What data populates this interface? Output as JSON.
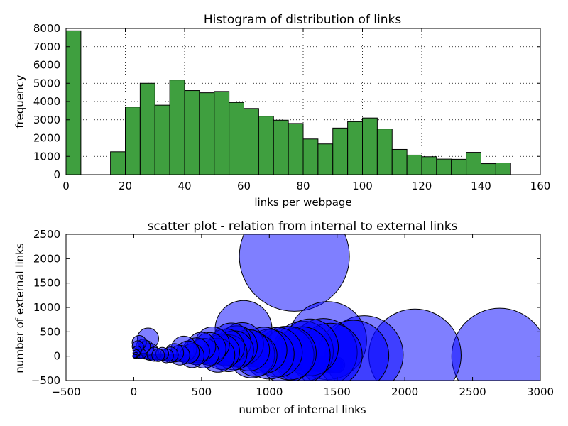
{
  "chart_data": [
    {
      "type": "bar",
      "title": "Histogram of distribution of links",
      "xlabel": "links per webpage",
      "ylabel": "frequency",
      "xlim": [
        0,
        160
      ],
      "ylim": [
        0,
        8000
      ],
      "xticks": [
        "0",
        "20",
        "40",
        "60",
        "80",
        "100",
        "120",
        "140",
        "160"
      ],
      "yticks": [
        "0",
        "1000",
        "2000",
        "3000",
        "4000",
        "5000",
        "6000",
        "7000",
        "8000"
      ],
      "grid": true,
      "bar_color": "#3f9f3f",
      "bins": [
        {
          "x0": 0,
          "x1": 5,
          "value": 7870
        },
        {
          "x0": 15,
          "x1": 20,
          "value": 1250
        },
        {
          "x0": 20,
          "x1": 25,
          "value": 3700
        },
        {
          "x0": 25,
          "x1": 30,
          "value": 5000
        },
        {
          "x0": 30,
          "x1": 35,
          "value": 3800
        },
        {
          "x0": 35,
          "x1": 40,
          "value": 5180
        },
        {
          "x0": 40,
          "x1": 45,
          "value": 4600
        },
        {
          "x0": 45,
          "x1": 50,
          "value": 4480
        },
        {
          "x0": 50,
          "x1": 55,
          "value": 4550
        },
        {
          "x0": 55,
          "x1": 60,
          "value": 3950
        },
        {
          "x0": 60,
          "x1": 65,
          "value": 3620
        },
        {
          "x0": 65,
          "x1": 70,
          "value": 3200
        },
        {
          "x0": 70,
          "x1": 75,
          "value": 2980
        },
        {
          "x0": 75,
          "x1": 80,
          "value": 2800
        },
        {
          "x0": 80,
          "x1": 85,
          "value": 1950
        },
        {
          "x0": 85,
          "x1": 90,
          "value": 1680
        },
        {
          "x0": 90,
          "x1": 95,
          "value": 2550
        },
        {
          "x0": 95,
          "x1": 100,
          "value": 2900
        },
        {
          "x0": 100,
          "x1": 105,
          "value": 3100
        },
        {
          "x0": 105,
          "x1": 110,
          "value": 2500
        },
        {
          "x0": 110,
          "x1": 115,
          "value": 1380
        },
        {
          "x0": 115,
          "x1": 120,
          "value": 1070
        },
        {
          "x0": 120,
          "x1": 125,
          "value": 980
        },
        {
          "x0": 125,
          "x1": 130,
          "value": 850
        },
        {
          "x0": 130,
          "x1": 135,
          "value": 840
        },
        {
          "x0": 135,
          "x1": 140,
          "value": 1220
        },
        {
          "x0": 140,
          "x1": 145,
          "value": 600
        },
        {
          "x0": 145,
          "x1": 150,
          "value": 640
        }
      ]
    },
    {
      "type": "scatter",
      "title": "scatter plot - relation from internal to external links",
      "xlabel": "number of internal links",
      "ylabel": "number of external links",
      "xlim": [
        -500,
        3000
      ],
      "ylim": [
        -500,
        2500
      ],
      "xticks": [
        "−500",
        "0",
        "500",
        "1000",
        "1500",
        "2000",
        "2500",
        "3000"
      ],
      "yticks": [
        "−500",
        "0",
        "500",
        "1000",
        "1500",
        "2000",
        "2500"
      ],
      "grid": false,
      "point_color": "#0000ff",
      "point_alpha": 0.5,
      "points": [
        {
          "x": 1185,
          "y": 2050,
          "size": 155
        },
        {
          "x": 2700,
          "y": 0,
          "size": 135
        },
        {
          "x": 2075,
          "y": 20,
          "size": 130
        },
        {
          "x": 1700,
          "y": 30,
          "size": 110
        },
        {
          "x": 1620,
          "y": 10,
          "size": 100
        },
        {
          "x": 1430,
          "y": 320,
          "size": 110
        },
        {
          "x": 1400,
          "y": 80,
          "size": 95
        },
        {
          "x": 1450,
          "y": 20,
          "size": 90
        },
        {
          "x": 1300,
          "y": 180,
          "size": 80
        },
        {
          "x": 1250,
          "y": 100,
          "size": 85
        },
        {
          "x": 1240,
          "y": 20,
          "size": 80
        },
        {
          "x": 1150,
          "y": 60,
          "size": 75
        },
        {
          "x": 1120,
          "y": 30,
          "size": 80
        },
        {
          "x": 1060,
          "y": 80,
          "size": 70
        },
        {
          "x": 1000,
          "y": 40,
          "size": 70
        },
        {
          "x": 960,
          "y": 120,
          "size": 65
        },
        {
          "x": 900,
          "y": 20,
          "size": 60
        },
        {
          "x": 870,
          "y": 30,
          "size": 65
        },
        {
          "x": 850,
          "y": 120,
          "size": 58
        },
        {
          "x": 810,
          "y": 560,
          "size": 80
        },
        {
          "x": 800,
          "y": 250,
          "size": 60
        },
        {
          "x": 760,
          "y": 200,
          "size": 58
        },
        {
          "x": 720,
          "y": 280,
          "size": 55
        },
        {
          "x": 740,
          "y": 120,
          "size": 55
        },
        {
          "x": 700,
          "y": 60,
          "size": 52
        },
        {
          "x": 680,
          "y": 180,
          "size": 52
        },
        {
          "x": 650,
          "y": 90,
          "size": 50
        },
        {
          "x": 620,
          "y": 20,
          "size": 48
        },
        {
          "x": 580,
          "y": 250,
          "size": 48
        },
        {
          "x": 560,
          "y": 150,
          "size": 46
        },
        {
          "x": 520,
          "y": 60,
          "size": 42
        },
        {
          "x": 500,
          "y": 200,
          "size": 40
        },
        {
          "x": 460,
          "y": 100,
          "size": 38
        },
        {
          "x": 430,
          "y": 10,
          "size": 34
        },
        {
          "x": 400,
          "y": 80,
          "size": 32
        },
        {
          "x": 370,
          "y": 150,
          "size": 36
        },
        {
          "x": 340,
          "y": 20,
          "size": 28
        },
        {
          "x": 300,
          "y": 70,
          "size": 26
        },
        {
          "x": 270,
          "y": 30,
          "size": 22
        },
        {
          "x": 240,
          "y": 10,
          "size": 20
        },
        {
          "x": 210,
          "y": 50,
          "size": 18
        },
        {
          "x": 180,
          "y": 20,
          "size": 18
        },
        {
          "x": 150,
          "y": 40,
          "size": 20
        },
        {
          "x": 120,
          "y": 90,
          "size": 24
        },
        {
          "x": 105,
          "y": 360,
          "size": 30
        },
        {
          "x": 90,
          "y": 160,
          "size": 22
        },
        {
          "x": 70,
          "y": 200,
          "size": 20
        },
        {
          "x": 55,
          "y": 50,
          "size": 14
        },
        {
          "x": 40,
          "y": 280,
          "size": 20
        },
        {
          "x": 30,
          "y": 200,
          "size": 16
        },
        {
          "x": 25,
          "y": 120,
          "size": 12
        },
        {
          "x": 20,
          "y": 60,
          "size": 10
        },
        {
          "x": 15,
          "y": 20,
          "size": 8
        },
        {
          "x": 10,
          "y": 5,
          "size": 6
        },
        {
          "x": 5,
          "y": 0,
          "size": 5
        }
      ]
    }
  ]
}
